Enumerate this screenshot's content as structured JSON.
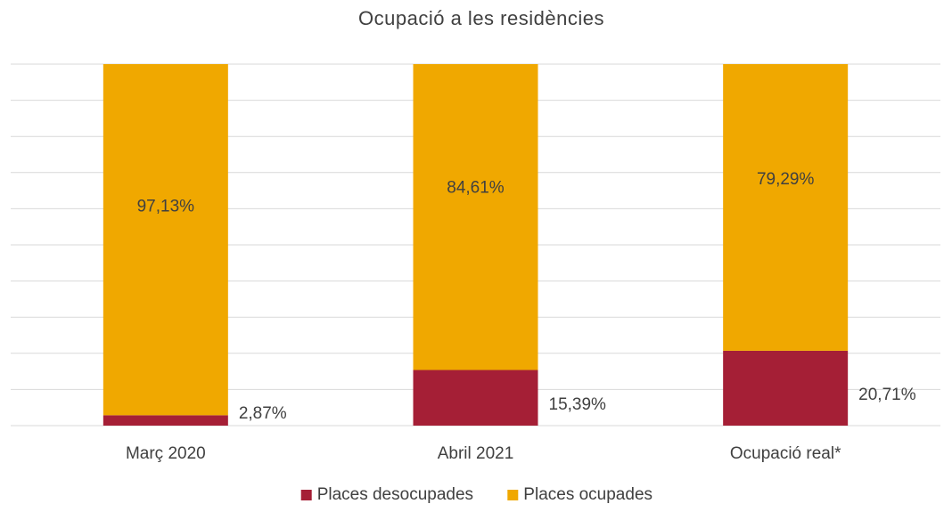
{
  "chart_data": {
    "type": "stacked_bar",
    "title": "Ocupació a les residències",
    "categories": [
      "Març 2020",
      "Abril 2021",
      "Ocupació real*"
    ],
    "series": [
      {
        "name": "Places desocupades",
        "color": "#a51f36",
        "values": [
          2.87,
          15.39,
          20.71
        ],
        "value_labels": [
          "2,87%",
          "15,39%",
          "20,71%"
        ]
      },
      {
        "name": "Places ocupades",
        "color": "#f0a800",
        "values": [
          97.13,
          84.61,
          79.29
        ],
        "value_labels": [
          "97,13%",
          "84,61%",
          "79,29%"
        ]
      }
    ],
    "ylim": [
      0,
      100
    ],
    "yticks": [
      0,
      10,
      20,
      30,
      40,
      50,
      60,
      70,
      80,
      90,
      100
    ],
    "grid": true,
    "legend": "bottom"
  }
}
